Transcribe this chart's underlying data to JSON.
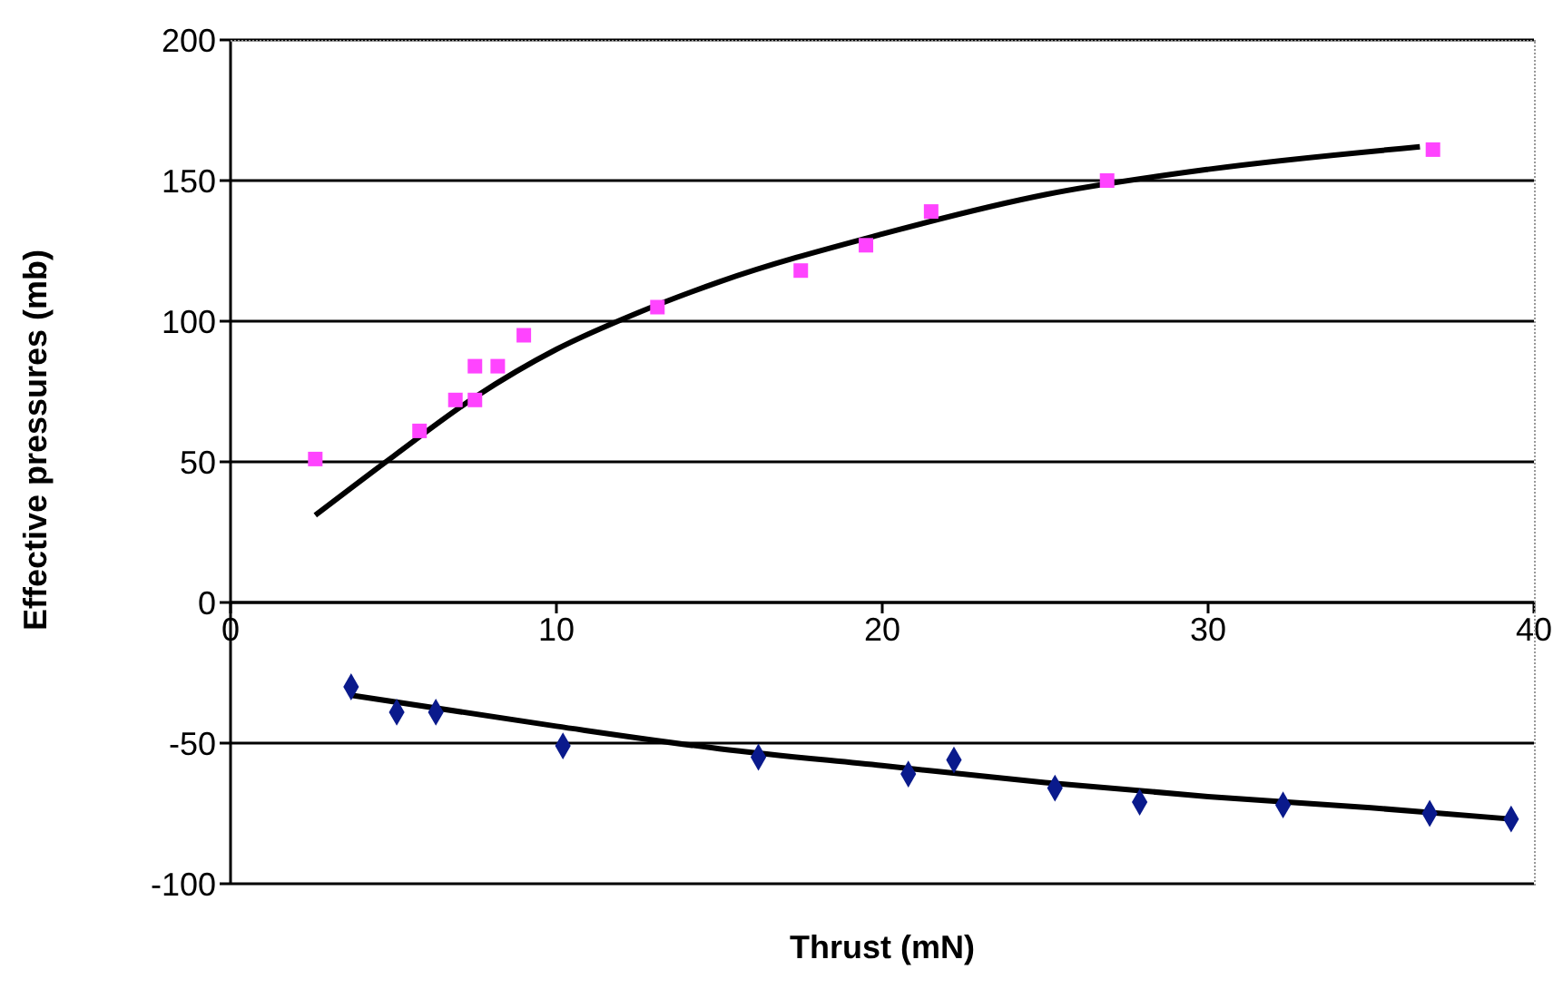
{
  "chart_data": {
    "type": "scatter",
    "xlabel": "Thrust (mN)",
    "ylabel": "Effective pressures (mb)",
    "xlim": [
      0,
      40
    ],
    "xticks": [
      0,
      10,
      20,
      30,
      40
    ],
    "ylim": [
      -100,
      200
    ],
    "yticks": [
      -100,
      -50,
      0,
      50,
      100,
      150,
      200
    ],
    "grid": "y",
    "series": [
      {
        "marker": "square",
        "color": "#ff44ff",
        "x": [
          2.6,
          5.8,
          6.9,
          7.5,
          7.5,
          8.2,
          9.0,
          13.1,
          17.5,
          19.5,
          21.5,
          26.9,
          36.9
        ],
        "values": [
          51,
          61,
          72,
          72,
          84,
          84,
          95,
          105,
          118,
          127,
          139,
          150,
          161
        ]
      },
      {
        "type": "line",
        "marker": "none",
        "color": "#000000",
        "x": [
          2.6,
          5,
          7.5,
          10,
          12.5,
          15,
          20,
          25,
          30,
          36.5
        ],
        "values": [
          31,
          52,
          73,
          90,
          103,
          114,
          131,
          145,
          154,
          162
        ]
      },
      {
        "marker": "diamond",
        "color": "#0a1a8c",
        "x": [
          3.7,
          5.1,
          6.3,
          10.2,
          16.2,
          20.8,
          22.2,
          25.3,
          27.9,
          32.3,
          36.8,
          39.3
        ],
        "values": [
          -30,
          -39,
          -39,
          -51,
          -55,
          -61,
          -56,
          -66,
          -71,
          -72,
          -75,
          -77
        ]
      },
      {
        "type": "line",
        "marker": "none",
        "color": "#000000",
        "x": [
          3.7,
          10,
          15,
          20,
          25,
          30,
          35,
          39.3
        ],
        "values": [
          -33,
          -44,
          -52,
          -58,
          -64,
          -69,
          -73,
          -77
        ]
      }
    ]
  }
}
